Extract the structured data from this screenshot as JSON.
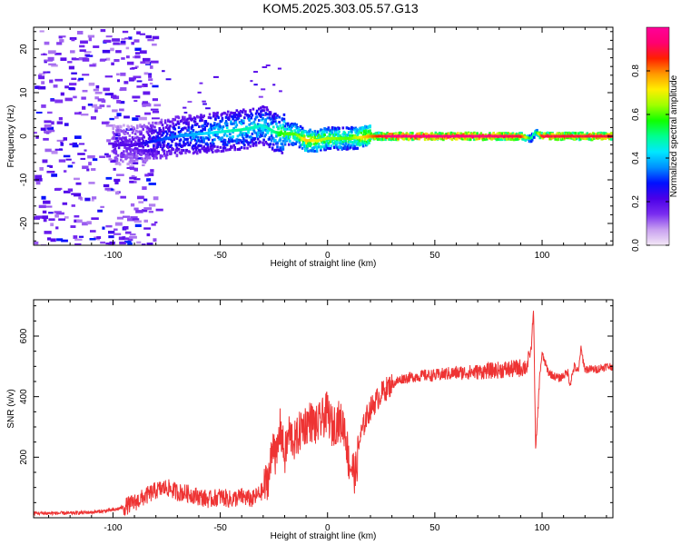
{
  "figure_title": "KOM5.2025.303.05.57.G13",
  "chart_data": [
    {
      "type": "heatmap",
      "xlabel": "Height of straight line (km)",
      "ylabel": "Frequency (Hz)",
      "xlim": [
        -137,
        133
      ],
      "ylim": [
        -25,
        25
      ],
      "xticks": [
        -100,
        -50,
        0,
        50,
        100
      ],
      "xtick_labels": [
        "-100",
        "-50",
        "0",
        "50",
        "100"
      ],
      "yticks": [
        -20,
        -10,
        0,
        10,
        20
      ],
      "ytick_labels": [
        "-20",
        "-10",
        "0",
        "10",
        "20"
      ],
      "grid": false,
      "colorbar": {
        "label": "Normalized spectral amplitude",
        "range": [
          0,
          1
        ],
        "ticks": [
          0.0,
          0.2,
          0.4,
          0.6,
          0.8
        ],
        "tick_labels": [
          "0.0",
          "0.2",
          "0.4",
          "0.6",
          "0.8"
        ],
        "colormap": [
          "#f4e8f6",
          "#c8a0f0",
          "#7a2df0",
          "#4b00e8",
          "#0010ff",
          "#0090ff",
          "#00e8ff",
          "#00ff90",
          "#10ff00",
          "#a0ff00",
          "#ffee00",
          "#ff9900",
          "#ff2000",
          "#ff0070",
          "#ff0099"
        ]
      },
      "ridge": {
        "x": [
          -90,
          -80,
          -70,
          -60,
          -50,
          -40,
          -30,
          -25,
          -20,
          -15,
          -10,
          -5,
          0,
          10,
          20,
          30,
          50,
          70,
          90,
          95,
          97,
          100,
          110,
          120,
          133
        ],
        "f": [
          -2.0,
          -1.0,
          0.0,
          0.5,
          1.0,
          1.5,
          2.5,
          1.0,
          0.5,
          0.5,
          -1.0,
          -1.0,
          -0.5,
          -0.5,
          0.0,
          0.0,
          0.0,
          0.0,
          0.0,
          -0.5,
          1.0,
          0.0,
          0.0,
          0.0,
          0.0
        ],
        "amplitude": [
          0.2,
          0.3,
          0.35,
          0.4,
          0.45,
          0.5,
          0.45,
          0.5,
          0.6,
          0.6,
          0.75,
          0.7,
          0.65,
          0.6,
          0.8,
          0.97,
          0.97,
          0.97,
          0.9,
          0.5,
          0.5,
          0.9,
          0.9,
          0.9,
          0.9
        ]
      },
      "noise_region_x": [
        -137,
        -90
      ]
    },
    {
      "type": "line",
      "xlabel": "Height of straight line (km)",
      "ylabel": "SNR (v/v)",
      "xlim": [
        -137,
        133
      ],
      "ylim": [
        0,
        720
      ],
      "xticks": [
        -100,
        -50,
        0,
        50,
        100
      ],
      "xtick_labels": [
        "-100",
        "-50",
        "0",
        "50",
        "100"
      ],
      "yticks": [
        200,
        400,
        600
      ],
      "ytick_labels": [
        "200",
        "400",
        "600"
      ],
      "grid": false,
      "color": "#ee3333",
      "series": [
        {
          "x": [
            -137,
            -120,
            -110,
            -100,
            -95,
            -90,
            -85,
            -80,
            -75,
            -70,
            -65,
            -60,
            -55,
            -50,
            -45,
            -40,
            -35,
            -30,
            -27,
            -25,
            -24,
            -22,
            -20,
            -18,
            -15,
            -12,
            -10,
            -8,
            -5,
            -2,
            0,
            2,
            5,
            8,
            10,
            12,
            13,
            15,
            18,
            20,
            22,
            25,
            28,
            30,
            35,
            40,
            45,
            50,
            55,
            60,
            65,
            70,
            75,
            80,
            85,
            90,
            93,
            95,
            96,
            97,
            99,
            100,
            103,
            105,
            108,
            110,
            112,
            113,
            115,
            117,
            118,
            120,
            125,
            130,
            133
          ],
          "y": [
            15,
            15,
            18,
            25,
            35,
            50,
            70,
            90,
            100,
            85,
            80,
            70,
            60,
            70,
            60,
            70,
            60,
            90,
            150,
            270,
            180,
            300,
            200,
            280,
            250,
            300,
            310,
            320,
            300,
            330,
            350,
            300,
            320,
            300,
            180,
            160,
            140,
            260,
            330,
            360,
            380,
            410,
            430,
            440,
            460,
            465,
            470,
            470,
            475,
            478,
            480,
            482,
            485,
            488,
            490,
            495,
            500,
            560,
            700,
            220,
            480,
            540,
            480,
            470,
            460,
            470,
            480,
            440,
            500,
            480,
            560,
            490,
            490,
            500,
            500
          ]
        }
      ]
    }
  ]
}
